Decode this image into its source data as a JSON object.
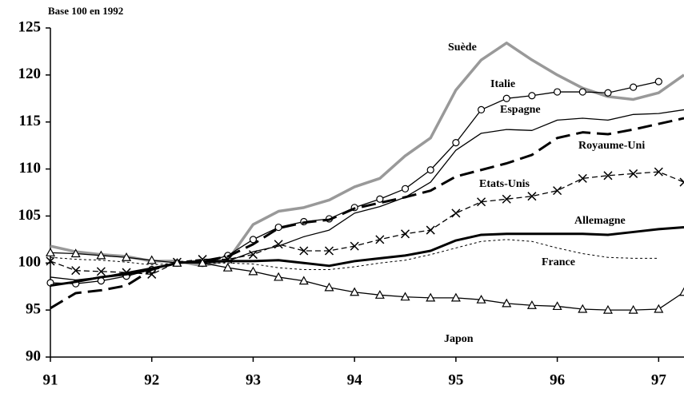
{
  "chart_data": {
    "type": "line",
    "subtitle": "Base 100 en 1992",
    "x": [
      91,
      91.25,
      91.5,
      91.75,
      92,
      92.25,
      92.5,
      92.75,
      93,
      93.25,
      93.5,
      93.75,
      94,
      94.25,
      94.5,
      94.75,
      95,
      95.25,
      95.5,
      95.75,
      96,
      96.25,
      96.5,
      96.75,
      97,
      97.25
    ],
    "xlim": [
      91,
      97.25
    ],
    "xticks": [
      91,
      92,
      93,
      94,
      95,
      96,
      97
    ],
    "ylim": [
      90,
      125
    ],
    "yticks": [
      90,
      95,
      100,
      105,
      110,
      115,
      120,
      125
    ],
    "grid": false,
    "series": [
      {
        "name": "Suède",
        "color": "#999999",
        "marker": null,
        "dash": false,
        "values": [
          101.8,
          101.2,
          100.9,
          100.7,
          100.2,
          100.2,
          99.7,
          100.3,
          104.1,
          105.5,
          105.9,
          106.7,
          108.1,
          109,
          111.4,
          113.3,
          118.4,
          121.6,
          123.4,
          121.6,
          120,
          118.6,
          117.7,
          117.4,
          118.1,
          120
        ]
      },
      {
        "name": "Italie",
        "color": "#000000",
        "marker": "circle",
        "dash": false,
        "values": [
          97.9,
          97.8,
          98.1,
          98.6,
          99.3,
          100,
          100,
          100.8,
          102.5,
          103.8,
          104.4,
          104.7,
          105.9,
          106.8,
          107.9,
          109.9,
          112.8,
          116.3,
          117.5,
          117.8,
          118.2,
          118.2,
          118.1,
          118.7,
          119.3,
          null
        ]
      },
      {
        "name": "Espagne",
        "color": "#000000",
        "marker": null,
        "dash": false,
        "values": [
          98.5,
          98.2,
          98.5,
          99,
          99.5,
          100,
          100,
          100.2,
          101.2,
          101.8,
          102.8,
          103.5,
          105.3,
          106,
          107,
          108.6,
          112,
          113.8,
          114.2,
          114.1,
          115.2,
          115.4,
          115.2,
          115.8,
          115.9,
          116.3
        ]
      },
      {
        "name": "Royaume-Uni",
        "color": "#000000",
        "marker": null,
        "dash": true,
        "values": [
          95.2,
          96.8,
          97.1,
          97.6,
          99.3,
          100,
          100.2,
          100.7,
          102,
          103.7,
          104.3,
          104.6,
          105.8,
          106.4,
          107,
          107.7,
          109.2,
          109.9,
          110.6,
          111.5,
          113.3,
          113.9,
          113.7,
          114.2,
          114.8,
          115.4
        ]
      },
      {
        "name": "Etats-Unis",
        "color": "#000000",
        "marker": "x",
        "dash": true,
        "values": [
          100.2,
          99.2,
          99.1,
          99,
          98.8,
          100.1,
          100.4,
          100.4,
          100.9,
          102,
          101.3,
          101.3,
          101.8,
          102.5,
          103.1,
          103.5,
          105.3,
          106.5,
          106.8,
          107.1,
          107.7,
          109,
          109.3,
          109.5,
          109.7,
          108.6
        ]
      },
      {
        "name": "Allemagne",
        "color": "#000000",
        "marker": null,
        "dash": false,
        "values": [
          97.6,
          98,
          98.5,
          98.8,
          99.4,
          100,
          100.2,
          100.2,
          100.2,
          100.3,
          100,
          99.7,
          100.2,
          100.5,
          100.8,
          101.3,
          102.4,
          103,
          103.1,
          103.1,
          103.1,
          103.1,
          103,
          103.3,
          103.6,
          103.8
        ]
      },
      {
        "name": "France",
        "color": "#000000",
        "marker": null,
        "dash": true,
        "values": [
          100.6,
          100.4,
          100.3,
          100.1,
          99.8,
          100,
          100,
          100,
          99.9,
          99.5,
          99.3,
          99.3,
          99.6,
          100,
          100.3,
          100.9,
          101.6,
          102.3,
          102.5,
          102.3,
          101.6,
          101,
          100.6,
          100.5,
          100.5,
          null
        ]
      },
      {
        "name": "Japon",
        "color": "#000000",
        "marker": "triangle",
        "dash": false,
        "values": [
          101.1,
          101,
          100.8,
          100.6,
          100.3,
          100,
          100,
          99.5,
          99.1,
          98.5,
          98.1,
          97.4,
          96.9,
          96.6,
          96.4,
          96.3,
          96.3,
          96.1,
          95.7,
          95.5,
          95.4,
          95.1,
          95,
          95,
          95.1,
          96.9
        ]
      }
    ]
  }
}
